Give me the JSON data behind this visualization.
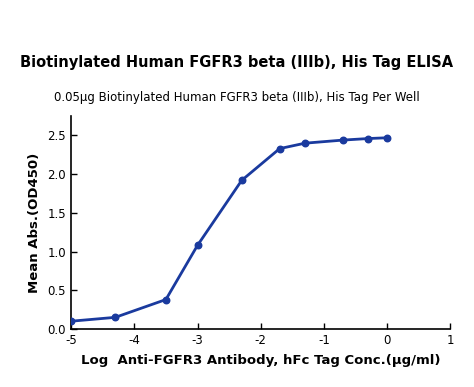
{
  "title": "Biotinylated Human FGFR3 beta (IIIb), His Tag ELISA",
  "subtitle": "0.05μg Biotinylated Human FGFR3 beta (IIIb), His Tag Per Well",
  "xlabel": "Log  Anti-FGFR3 Antibody, hFc Tag Conc.(μg/ml)",
  "ylabel": "Mean Abs.(OD450)",
  "xlim": [
    -5,
    1
  ],
  "ylim": [
    0.0,
    2.75
  ],
  "xticks": [
    -5,
    -4,
    -3,
    -2,
    -1,
    0,
    1
  ],
  "yticks": [
    0.0,
    0.5,
    1.0,
    1.5,
    2.0,
    2.5
  ],
  "data_x": [
    -5.0,
    -4.3,
    -3.5,
    -3.0,
    -2.3,
    -1.7,
    -1.3,
    -0.7,
    -0.3,
    0.0
  ],
  "data_y": [
    0.1,
    0.15,
    0.38,
    1.08,
    1.92,
    2.33,
    2.4,
    2.44,
    2.46,
    2.47
  ],
  "line_color": "#1a3a9e",
  "dot_color": "#1a3a9e",
  "background_color": "#ffffff",
  "title_fontsize": 10.5,
  "subtitle_fontsize": 8.5,
  "label_fontsize": 9.5,
  "tick_fontsize": 8.5,
  "dot_size": 22,
  "line_width": 2.0
}
